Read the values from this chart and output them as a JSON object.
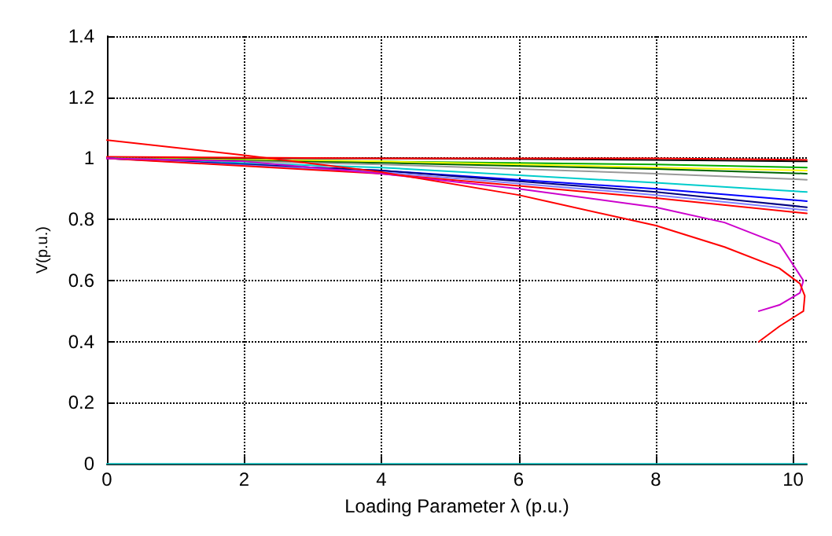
{
  "chart_data": {
    "type": "line",
    "xlabel": "Loading Parameter λ (p.u.)",
    "ylabel": "V(p.u.)",
    "xlim": [
      0,
      10.2
    ],
    "ylim": [
      0,
      1.4
    ],
    "xticks": [
      0,
      2,
      4,
      6,
      8,
      10
    ],
    "yticks": [
      0,
      0.2,
      0.4,
      0.6,
      0.8,
      1,
      1.2,
      1.4
    ],
    "grid": true,
    "line_style": "solid",
    "marker": "none",
    "series": [
      {
        "color": "#000000",
        "x": [
          0,
          4,
          8,
          10.2
        ],
        "values": [
          1.0,
          1.0,
          0.995,
          0.99
        ]
      },
      {
        "color": "#ff0000",
        "x": [
          0,
          4,
          8,
          10.2
        ],
        "values": [
          1.005,
          1.0,
          1.0,
          0.995
        ]
      },
      {
        "color": "#00aa00",
        "x": [
          0,
          4,
          8,
          10.2
        ],
        "values": [
          1.0,
          0.99,
          0.98,
          0.97
        ]
      },
      {
        "color": "#ffff00",
        "x": [
          0,
          4,
          8,
          10.2
        ],
        "values": [
          1.0,
          0.99,
          0.97,
          0.96
        ]
      },
      {
        "color": "#006600",
        "x": [
          0,
          4,
          8,
          10.2
        ],
        "values": [
          1.0,
          0.985,
          0.965,
          0.95
        ]
      },
      {
        "color": "#999999",
        "x": [
          0,
          4,
          8,
          10.2
        ],
        "values": [
          1.0,
          0.98,
          0.95,
          0.93
        ]
      },
      {
        "color": "#00cccc",
        "x": [
          0,
          4,
          8,
          10.2
        ],
        "values": [
          1.0,
          0.97,
          0.92,
          0.89
        ]
      },
      {
        "color": "#0000ff",
        "x": [
          0,
          4,
          8,
          10.2
        ],
        "values": [
          1.0,
          0.96,
          0.9,
          0.86
        ]
      },
      {
        "color": "#000080",
        "x": [
          0,
          4,
          8,
          10.2
        ],
        "values": [
          1.0,
          0.96,
          0.89,
          0.84
        ]
      },
      {
        "color": "#8080ff",
        "x": [
          0,
          4,
          8,
          10.2
        ],
        "values": [
          1.0,
          0.955,
          0.88,
          0.83
        ]
      },
      {
        "color": "#ff0000",
        "x": [
          0,
          4,
          8,
          10.2
        ],
        "values": [
          1.0,
          0.95,
          0.87,
          0.82
        ]
      },
      {
        "color": "#cc00cc",
        "x": [
          0,
          2,
          4,
          6,
          8,
          9,
          9.8,
          10.15,
          10.1,
          9.8,
          9.5
        ],
        "values": [
          1.0,
          0.99,
          0.95,
          0.9,
          0.84,
          0.79,
          0.72,
          0.6,
          0.56,
          0.52,
          0.5
        ]
      },
      {
        "color": "#ff0000",
        "x": [
          0,
          2,
          4,
          6,
          8,
          9,
          9.8,
          10.1,
          10.17,
          10.15,
          9.8,
          9.5
        ],
        "values": [
          1.06,
          1.01,
          0.955,
          0.88,
          0.78,
          0.71,
          0.64,
          0.59,
          0.55,
          0.5,
          0.45,
          0.4
        ]
      },
      {
        "color": "#00aaaa",
        "x": [
          0,
          10.2
        ],
        "values": [
          0,
          0
        ]
      }
    ]
  }
}
